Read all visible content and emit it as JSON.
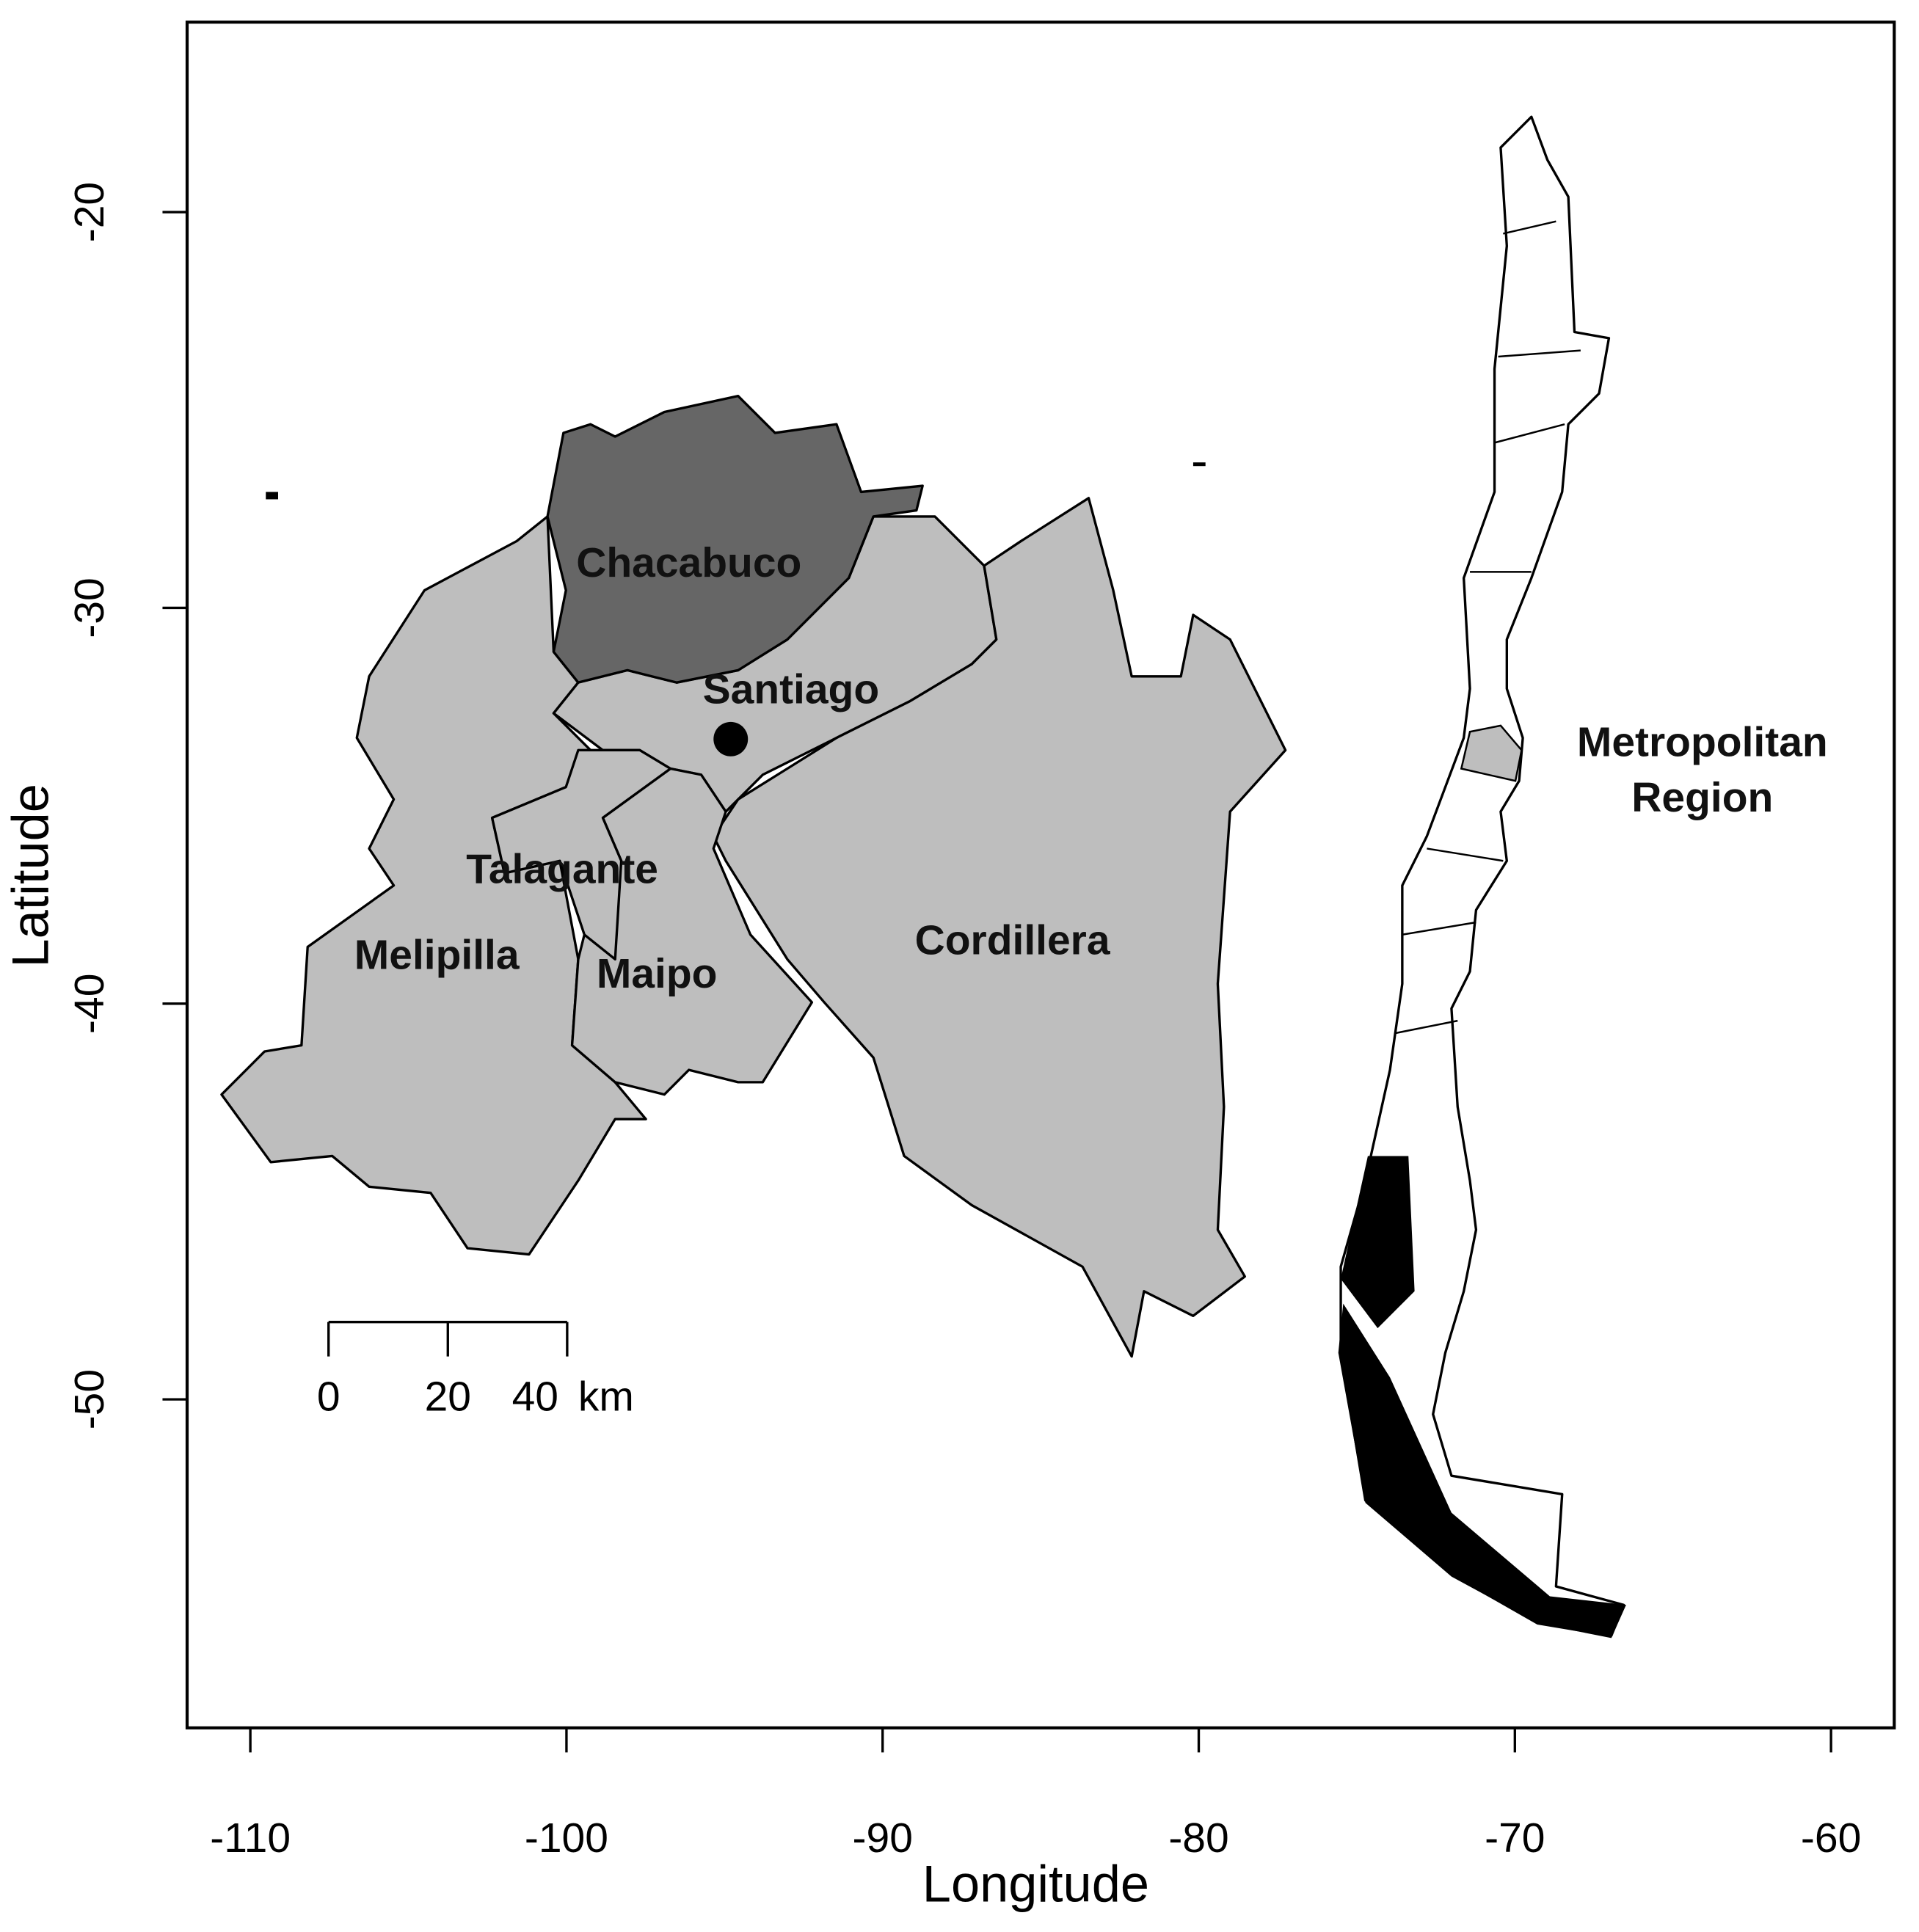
{
  "axes": {
    "xlabel": "Longitude",
    "ylabel": "Latitude",
    "xlim": [
      -112,
      -58
    ],
    "ylim": [
      -58.3,
      -15.2
    ],
    "xticks": [
      -110,
      -100,
      -90,
      -80,
      -70,
      -60
    ],
    "yticks": [
      -20,
      -30,
      -40,
      -50
    ]
  },
  "regions": [
    "Chacabuco",
    "Santiago",
    "Talagante",
    "Melipilla",
    "Maipo",
    "Cordillera"
  ],
  "inset_label": [
    "Metropolitan",
    "Region"
  ],
  "scale_bar": {
    "ticks": [
      0,
      20,
      40
    ],
    "unit": "km"
  }
}
